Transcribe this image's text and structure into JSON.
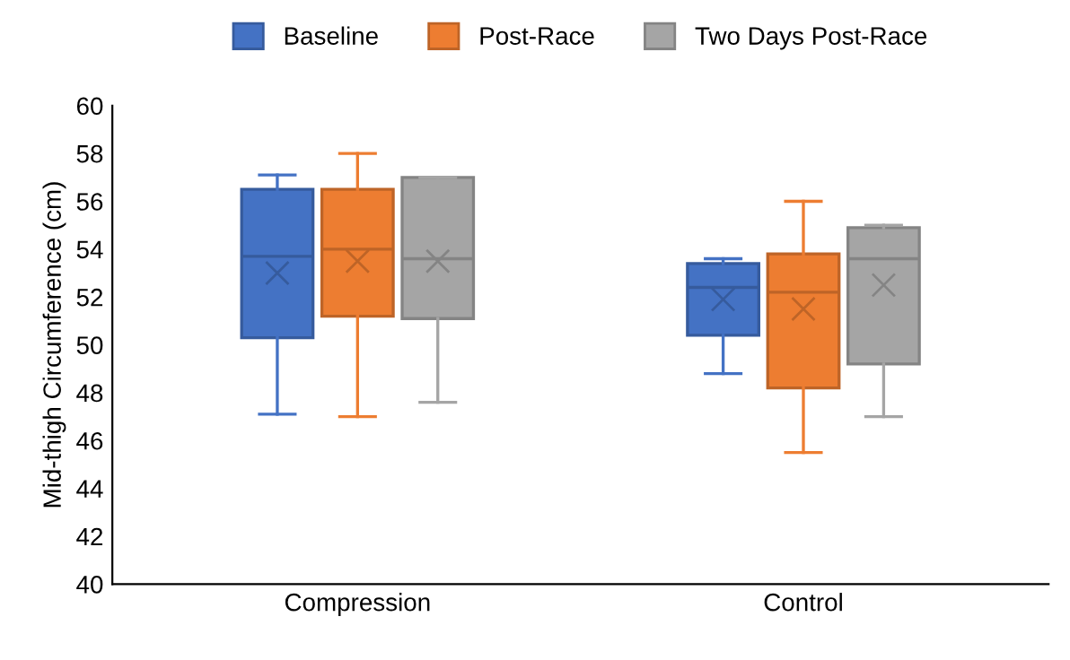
{
  "chart_data": {
    "type": "box",
    "ylabel": "Mid-thigh Circumference (cm)",
    "categories": [
      "Compression",
      "Control"
    ],
    "series": [
      {
        "name": "Baseline",
        "color": "#4472c4",
        "boxes": [
          {
            "low": 47.1,
            "q1": 50.3,
            "median": 53.7,
            "q3": 56.5,
            "high": 57.1,
            "mean": 53.0
          },
          {
            "low": 48.8,
            "q1": 50.4,
            "median": 52.4,
            "q3": 53.4,
            "high": 53.6,
            "mean": 51.9
          }
        ]
      },
      {
        "name": "Post-Race",
        "color": "#ed7d31",
        "boxes": [
          {
            "low": 47.0,
            "q1": 51.2,
            "median": 54.0,
            "q3": 56.5,
            "high": 58.0,
            "mean": 53.5
          },
          {
            "low": 45.5,
            "q1": 48.2,
            "median": 52.2,
            "q3": 53.8,
            "high": 56.0,
            "mean": 51.5
          }
        ]
      },
      {
        "name": "Two Days Post-Race",
        "color": "#a5a5a5",
        "boxes": [
          {
            "low": 47.6,
            "q1": 51.1,
            "median": 53.6,
            "q3": 57.0,
            "high": 57.0,
            "mean": 53.5
          },
          {
            "low": 47.0,
            "q1": 49.2,
            "median": 53.6,
            "q3": 54.9,
            "high": 55.0,
            "mean": 52.5
          }
        ]
      }
    ],
    "ylim": [
      40,
      60
    ],
    "yticks": [
      40,
      42,
      44,
      46,
      48,
      50,
      52,
      54,
      56,
      58,
      60
    ],
    "grid": false,
    "legend": "top"
  }
}
